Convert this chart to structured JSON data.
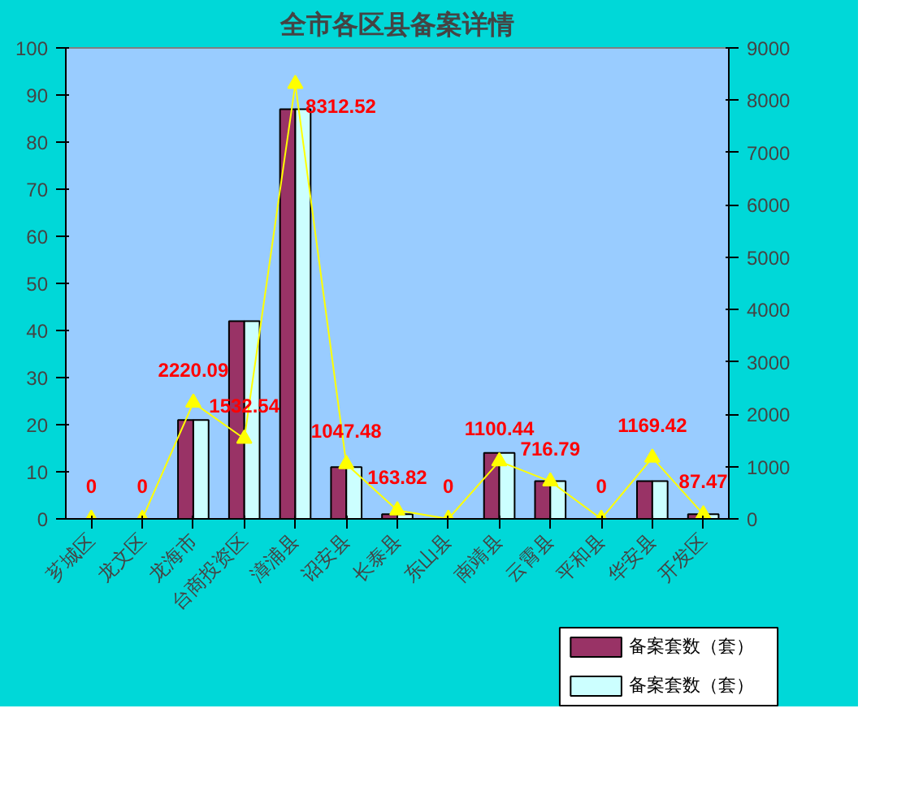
{
  "chart_data": {
    "type": "bar",
    "title": "全市各区县备案详情",
    "categories": [
      "芗城区",
      "龙文区",
      "龙海市",
      "台商投资区",
      "漳浦县",
      "诏安县",
      "长泰县",
      "东山县",
      "南靖县",
      "云霄县",
      "平和县",
      "华安县",
      "开发区"
    ],
    "series": [
      {
        "name": "备案套数（套）",
        "color": "#993366",
        "values": [
          0,
          0,
          21,
          42,
          87,
          11,
          1,
          0,
          14,
          8,
          0,
          8,
          1
        ]
      },
      {
        "name": "备案套数（套）",
        "color": "#ccffff",
        "values": [
          0,
          0,
          21,
          42,
          87,
          11,
          1,
          0,
          14,
          8,
          0,
          8,
          1
        ]
      },
      {
        "type": "line",
        "axis": "y2",
        "color": "#ffff00",
        "marker": "triangle",
        "values": [
          0,
          0,
          2220.09,
          1532.54,
          8312.52,
          1047.48,
          163.82,
          0,
          1100.44,
          716.79,
          0,
          1169.42,
          87.47
        ],
        "value_labels": [
          "0",
          "0",
          "2220.09",
          "1532.54",
          "8312.52",
          "1047.48",
          "163.82",
          "0",
          "1100.44",
          "716.79",
          "0",
          "1169.42",
          "87.47"
        ]
      }
    ],
    "ylim": [
      0,
      100
    ],
    "yticks": [
      0,
      10,
      20,
      30,
      40,
      50,
      60,
      70,
      80,
      90,
      100
    ],
    "y2lim": [
      0,
      9000
    ],
    "y2ticks": [
      0,
      1000,
      2000,
      3000,
      4000,
      5000,
      6000,
      7000,
      8000,
      9000
    ],
    "legend": "bottom right",
    "grid": false
  }
}
